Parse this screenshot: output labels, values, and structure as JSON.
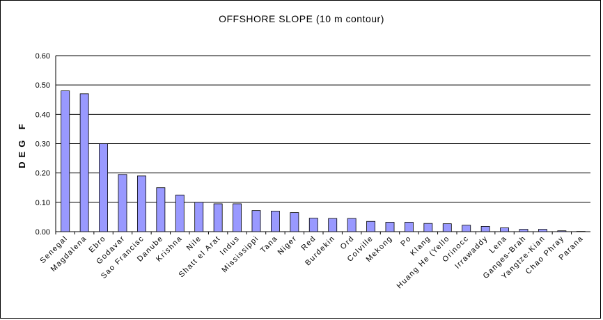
{
  "chart_data": {
    "type": "bar",
    "title": "OFFSHORE SLOPE (10 m contour)",
    "y_label": "DEG F",
    "categories": [
      "Senegal",
      "Magdalena",
      "Ebro",
      "Godavar",
      "Sao Francisc",
      "Danube",
      "Krishna",
      "Nile",
      "Shatt el Arat",
      "Indus",
      "Mississippi",
      "Tana",
      "Niger",
      "Red",
      "Burdekin",
      "Ord",
      "Colville",
      "Mekong",
      "Po",
      "Klang",
      "Huang He (Yello",
      "Orinocc",
      "Irrawaddy",
      "Lena",
      "Ganges-Brah",
      "Yangtze-Kian",
      "Chao Phray",
      "Parana"
    ],
    "values": [
      0.48,
      0.47,
      0.3,
      0.195,
      0.19,
      0.15,
      0.125,
      0.1,
      0.095,
      0.095,
      0.072,
      0.07,
      0.065,
      0.046,
      0.045,
      0.045,
      0.035,
      0.032,
      0.032,
      0.028,
      0.027,
      0.022,
      0.018,
      0.013,
      0.008,
      0.008,
      0.003,
      0.001
    ],
    "color": "#9999ff",
    "ylim": [
      0,
      0.6
    ],
    "yticks": [
      {
        "value": 0,
        "label": "0.00"
      },
      {
        "value": 0.1,
        "label": "0.10"
      },
      {
        "value": 0.2,
        "label": "0.20"
      },
      {
        "value": 0.3,
        "label": "0.30"
      },
      {
        "value": 0.4,
        "label": "0.40"
      },
      {
        "value": 0.5,
        "label": "0.50"
      },
      {
        "value": 0.6,
        "label": "0.60"
      }
    ],
    "grid": true
  }
}
